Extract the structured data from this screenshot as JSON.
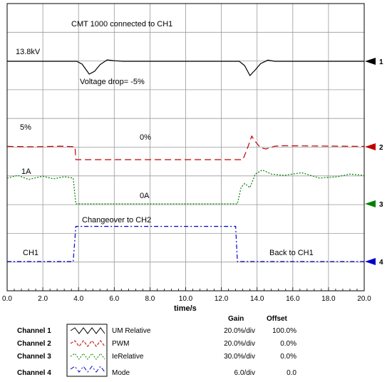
{
  "chart_data": {
    "type": "line",
    "xlabel": "time/s",
    "xlim": [
      0,
      20
    ],
    "x_ticks": [
      "0.0",
      "2.0",
      "4.0",
      "6.0",
      "8.0",
      "10.0",
      "12.0",
      "14.0",
      "16.0",
      "18.0",
      "20.0"
    ],
    "grid": true,
    "series": [
      {
        "channel": "1",
        "color": "#000000",
        "dash": "solid",
        "points": [
          [
            0,
            0
          ],
          [
            3.9,
            0
          ],
          [
            4.2,
            -0.1
          ],
          [
            4.6,
            -0.45
          ],
          [
            4.9,
            -0.35
          ],
          [
            5.2,
            -0.12
          ],
          [
            5.6,
            0.05
          ],
          [
            6.0,
            0.02
          ],
          [
            6.5,
            0
          ],
          [
            13.0,
            0
          ],
          [
            13.3,
            -0.15
          ],
          [
            13.6,
            -0.5
          ],
          [
            13.9,
            -0.3
          ],
          [
            14.2,
            -0.08
          ],
          [
            14.6,
            0.04
          ],
          [
            15.0,
            0
          ],
          [
            20,
            0
          ]
        ]
      },
      {
        "channel": "2",
        "color": "#c00000",
        "dash": "dashed",
        "points": [
          [
            0,
            0.02
          ],
          [
            1.5,
            0
          ],
          [
            3.0,
            0.03
          ],
          [
            3.8,
            0
          ],
          [
            3.85,
            -0.6
          ],
          [
            13.2,
            -0.6
          ],
          [
            13.4,
            -0.2
          ],
          [
            13.7,
            0.5
          ],
          [
            13.9,
            0.25
          ],
          [
            14.2,
            -0.05
          ],
          [
            14.5,
            -0.1
          ],
          [
            15.0,
            0.03
          ],
          [
            15.5,
            0.05
          ],
          [
            20,
            0.02
          ]
        ]
      },
      {
        "channel": "3",
        "color": "#008000",
        "dash": "dotted",
        "points": [
          [
            0,
            0.95
          ],
          [
            0.6,
            1.05
          ],
          [
            1.2,
            0.9
          ],
          [
            2.0,
            1.02
          ],
          [
            2.6,
            0.92
          ],
          [
            3.2,
            1.0
          ],
          [
            3.7,
            0.95
          ],
          [
            3.85,
            0
          ],
          [
            12.9,
            0
          ],
          [
            13.1,
            0.6
          ],
          [
            13.3,
            0.75
          ],
          [
            13.6,
            0.6
          ],
          [
            13.9,
            1.1
          ],
          [
            14.3,
            1.25
          ],
          [
            14.8,
            1.1
          ],
          [
            15.5,
            1.05
          ],
          [
            16.5,
            1.15
          ],
          [
            17.5,
            0.95
          ],
          [
            18.5,
            1.0
          ],
          [
            19.2,
            1.1
          ],
          [
            20,
            1.05
          ]
        ]
      },
      {
        "channel": "4",
        "color": "#0000cc",
        "dash": "dashdot",
        "points": [
          [
            0,
            0
          ],
          [
            3.7,
            0
          ],
          [
            3.85,
            1.3
          ],
          [
            12.8,
            1.3
          ],
          [
            12.9,
            0
          ],
          [
            20,
            0
          ]
        ]
      }
    ],
    "annotations": {
      "title": "CMT 1000 connected to CH1",
      "v_level": "13.8kV",
      "v_drop": "Voltage drop= -5%",
      "pwm_high": "5%",
      "pwm_low": "0%",
      "ie_high": "1A",
      "ie_low": "0A",
      "changeover": "Changeover to CH2",
      "ch1": "CH1",
      "back": "Back to CH1"
    },
    "markers": [
      "1",
      "2",
      "3",
      "4"
    ],
    "legend": {
      "gain_header": "Gain",
      "offset_header": "Offset",
      "channels": [
        {
          "label": "Channel 1",
          "name": "UM Relative",
          "gain": "20.0%/div",
          "offset": "100.0%",
          "color": "#000000"
        },
        {
          "label": "Channel 2",
          "name": "PWM",
          "gain": "20.0%/div",
          "offset": "0.0%",
          "color": "#c00000"
        },
        {
          "label": "Channel 3",
          "name": "IeRelative",
          "gain": "30.0%/div",
          "offset": "0.0%",
          "color": "#008000"
        },
        {
          "label": "Channel 4",
          "name": "Mode",
          "gain": "6.0/div",
          "offset": "0.0",
          "color": "#0000cc"
        }
      ]
    }
  }
}
